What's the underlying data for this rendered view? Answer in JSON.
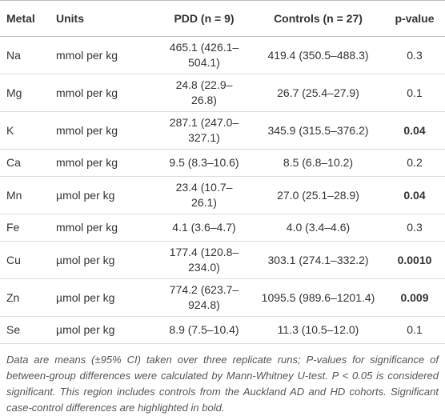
{
  "table": {
    "header": [
      "Metal",
      "Units",
      "PDD (n = 9)",
      "Controls (n = 27)",
      "p-value"
    ],
    "rows": [
      {
        "metal": "Na",
        "units": "mmol per kg",
        "pdd": "465.1 (426.1–504.1)",
        "controls": "419.4 (350.5–488.3)",
        "p": "0.3",
        "significant": false
      },
      {
        "metal": "Mg",
        "units": "mmol per kg",
        "pdd": "24.8 (22.9–26.8)",
        "controls": "26.7 (25.4–27.9)",
        "p": "0.1",
        "significant": false
      },
      {
        "metal": "K",
        "units": "mmol per kg",
        "pdd": "287.1 (247.0–327.1)",
        "controls": "345.9 (315.5–376.2)",
        "p": "0.04",
        "significant": true
      },
      {
        "metal": "Ca",
        "units": "mmol per kg",
        "pdd": "9.5 (8.3–10.6)",
        "controls": "8.5 (6.8–10.2)",
        "p": "0.2",
        "significant": false
      },
      {
        "metal": "Mn",
        "units": "µmol per kg",
        "pdd": "23.4 (10.7–26.1)",
        "controls": "27.0 (25.1–28.9)",
        "p": "0.04",
        "significant": true
      },
      {
        "metal": "Fe",
        "units": "mmol per kg",
        "pdd": "4.1 (3.6–4.7)",
        "controls": "4.0 (3.4–4.6)",
        "p": "0.3",
        "significant": false
      },
      {
        "metal": "Cu",
        "units": "µmol per kg",
        "pdd": "177.4 (120.8–234.0)",
        "controls": "303.1 (274.1–332.2)",
        "p": "0.0010",
        "significant": true
      },
      {
        "metal": "Zn",
        "units": "µmol per kg",
        "pdd": "774.2 (623.7–924.8)",
        "controls": "1095.5 (989.6–1201.4)",
        "p": "0.009",
        "significant": true
      },
      {
        "metal": "Se",
        "units": "µmol per kg",
        "pdd": "8.9 (7.5–10.4)",
        "controls": "11.3 (10.5–12.0)",
        "p": "0.1",
        "significant": false
      }
    ],
    "footnote": "Data are means (±95% CI) taken over three replicate runs; P-values for significance of between-group differences were calculated by Mann-Whitney U-test. P < 0.05 is considered significant. This region includes controls from the Auckland AD and HD cohorts. Significant case-control differences are highlighted in bold."
  }
}
